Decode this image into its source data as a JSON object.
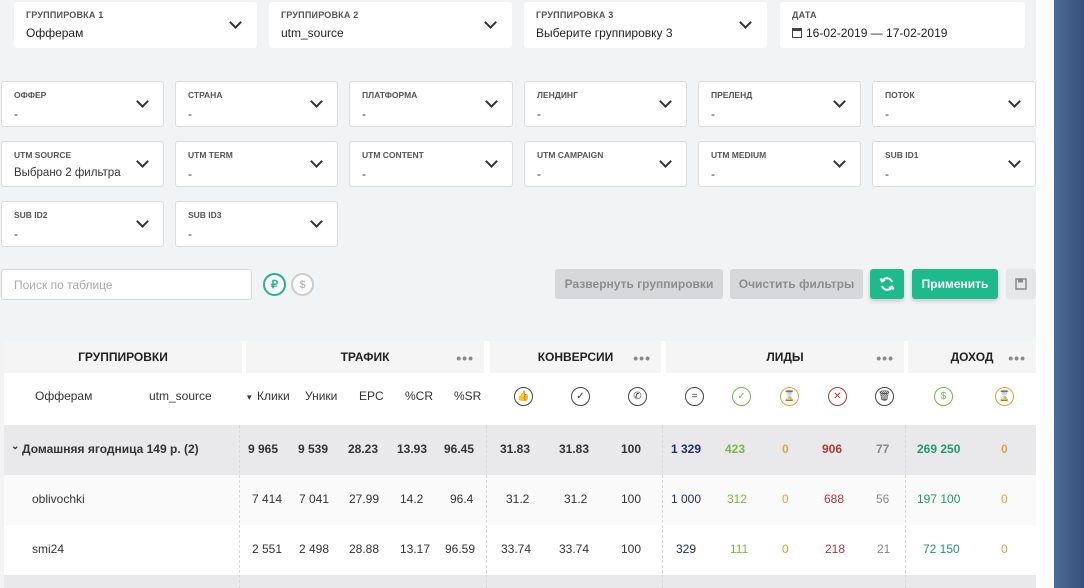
{
  "groupings": [
    {
      "label": "ГРУППИРОВКА 1",
      "value": "Офферам"
    },
    {
      "label": "ГРУППИРОВКА 2",
      "value": "utm_source"
    },
    {
      "label": "ГРУППИРОВКА 3",
      "value": "Выберите группировку 3"
    }
  ],
  "date": {
    "label": "ДАТА",
    "value": "16-02-2019 — 17-02-2019"
  },
  "filters": [
    {
      "label": "ОФФЕР",
      "value": "-"
    },
    {
      "label": "СТРАНА",
      "value": "-"
    },
    {
      "label": "ПЛАТФОРМА",
      "value": "-"
    },
    {
      "label": "ЛЕНДИНГ",
      "value": "-"
    },
    {
      "label": "ПРЕЛЕНД",
      "value": "-"
    },
    {
      "label": "ПОТОК",
      "value": "-"
    },
    {
      "label": "UTM SOURCE",
      "value": "Выбрано 2 фильтра"
    },
    {
      "label": "UTM TERM",
      "value": "-"
    },
    {
      "label": "UTM CONTENT",
      "value": "-"
    },
    {
      "label": "UTM CAMPAIGN",
      "value": "-"
    },
    {
      "label": "UTM MEDIUM",
      "value": "-"
    },
    {
      "label": "SUB ID1",
      "value": "-"
    },
    {
      "label": "SUB ID2",
      "value": "-"
    },
    {
      "label": "SUB ID3",
      "value": "-"
    }
  ],
  "search": {
    "placeholder": "Поиск по таблице"
  },
  "currency": {
    "rub": "₽",
    "usd": "$"
  },
  "buttons": {
    "expand": "Развернуть группировки",
    "clear": "Очистить фильтры",
    "apply": "Применить"
  },
  "table": {
    "headers": {
      "groupings": "ГРУППИРОВКИ",
      "traffic": "ТРАФИК",
      "conversions": "КОНВЕРСИИ",
      "leads": "ЛИДЫ",
      "income": "ДОХОД",
      "dots": "•••"
    },
    "sub": {
      "g1": "Офферам",
      "g2": "utm_source",
      "clicks": "Клики",
      "uniques": "Уники",
      "epc": "EPC",
      "cr": "%CR",
      "sr": "%SR",
      "sort": "▾"
    },
    "rows": [
      {
        "name": "Домашняя ягодница 149 р. (2)",
        "arrow": "⌄",
        "vals": [
          "9 965",
          "9 539",
          "28.23",
          "13.93",
          "96.45",
          "31.83",
          "31.83",
          "100",
          "1 329",
          "423",
          "0",
          "906",
          "77",
          "269 250",
          "0"
        ]
      },
      {
        "name": "oblivochki",
        "vals": [
          "7 414",
          "7 041",
          "27.99",
          "14.2",
          "96.4",
          "31.2",
          "31.2",
          "100",
          "1 000",
          "312",
          "0",
          "688",
          "56",
          "197 100",
          "0"
        ]
      },
      {
        "name": "smi24",
        "vals": [
          "2 551",
          "2 498",
          "28.88",
          "13.17",
          "96.59",
          "33.74",
          "33.74",
          "100",
          "329",
          "111",
          "0",
          "218",
          "21",
          "72 150",
          "0"
        ]
      }
    ],
    "colors": {
      "leads_total": "#1f2d6b",
      "approved": "#7ab648",
      "hold": "#e0a33a",
      "rejected": "#b03a3a",
      "trash": "#888888",
      "income": "#1f9a6b",
      "income_hold": "#e0a33a"
    }
  }
}
